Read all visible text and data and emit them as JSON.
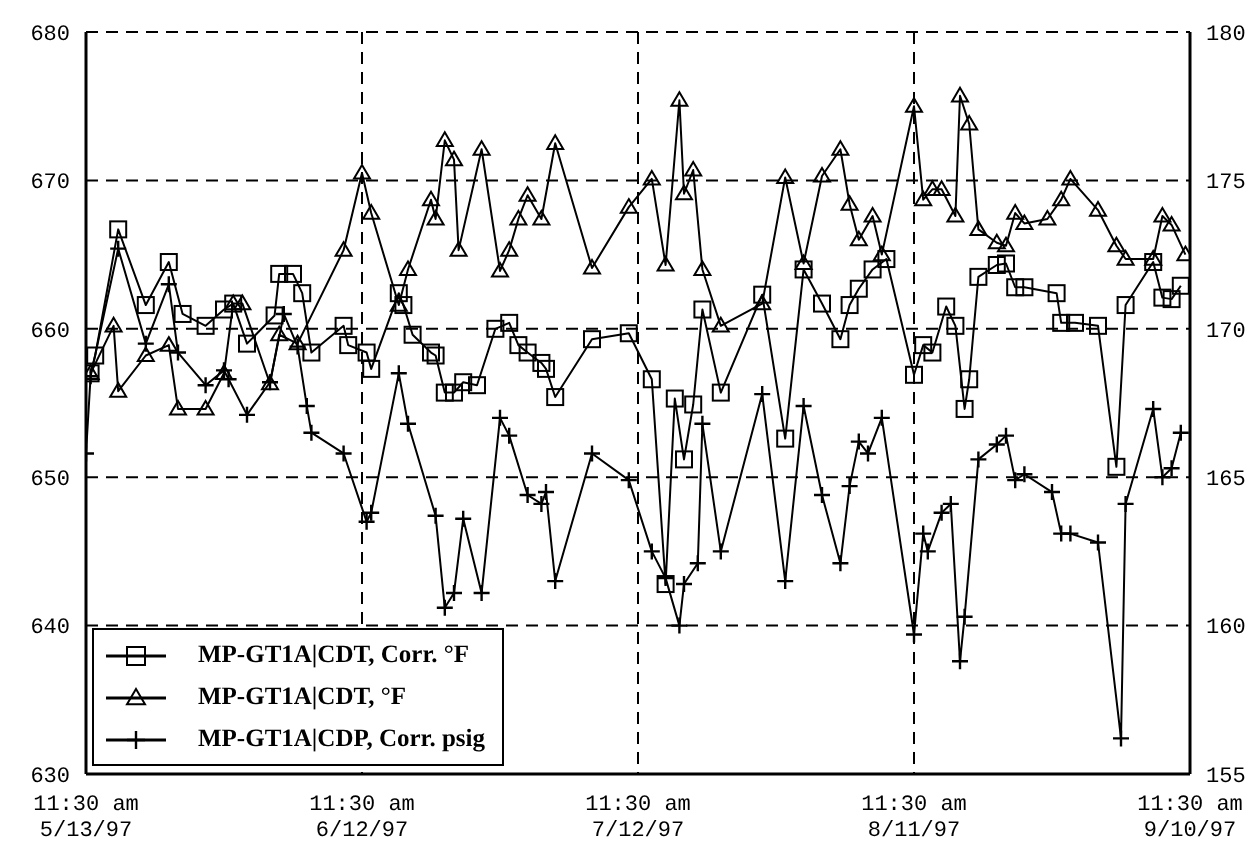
{
  "chart_data": {
    "type": "line",
    "xlim": [
      "1997-05-13T11:30",
      "1997-09-10T11:30"
    ],
    "xticks": [
      {
        "value": "1997-05-13T11:30",
        "label": "11:30 am\n5/13/97"
      },
      {
        "value": "1997-06-12T11:30",
        "label": "11:30 am\n6/12/97"
      },
      {
        "value": "1997-07-12T11:30",
        "label": "11:30 am\n7/12/97"
      },
      {
        "value": "1997-08-11T11:30",
        "label": "11:30 am\n8/11/97"
      },
      {
        "value": "1997-09-10T11:30",
        "label": "11:30 am\n9/10/97"
      }
    ],
    "ylim": [
      630,
      680
    ],
    "yticks": [
      630,
      640,
      650,
      660,
      670,
      680
    ],
    "y2lim": [
      155,
      180
    ],
    "y2ticks": [
      155,
      160,
      165,
      170,
      175,
      180
    ],
    "grid": true,
    "legend": "bottom left",
    "line_style": "solid",
    "series": [
      {
        "name": "MP-GT1A|CDT, Corr. °F",
        "color": "#000000",
        "marker": "square",
        "x": [
          "1997-05-13T23:30",
          "1997-05-14T11:30",
          "1997-05-16T23:30",
          "1997-05-19T23:30",
          "1997-05-22T11:30",
          "1997-05-23T23:30",
          "1997-05-26T11:30",
          "1997-05-28T11:30",
          "1997-05-29T11:30",
          "1997-05-30T23:30",
          "1997-06-02T23:30",
          "1997-06-03T11:30",
          "1997-06-04T23:30",
          "1997-06-05T23:30",
          "1997-06-06T23:30",
          "1997-06-10T11:30",
          "1997-06-10T23:30",
          "1997-06-12T23:30",
          "1997-06-13T11:30",
          "1997-06-16T11:30",
          "1997-06-16T23:30",
          "1997-06-17T23:30",
          "1997-06-19T23:30",
          "1997-06-20T11:30",
          "1997-06-21T11:30",
          "1997-06-22T11:30",
          "1997-06-23T11:30",
          "1997-06-24T23:30",
          "1997-06-26T23:30",
          "1997-06-28T11:30",
          "1997-06-29T11:30",
          "1997-06-30T11:30",
          "1997-07-01T23:30",
          "1997-07-02T11:30",
          "1997-07-03T11:30",
          "1997-07-07T11:30",
          "1997-07-11T11:30",
          "1997-07-13T23:30",
          "1997-07-15T11:30",
          "1997-07-16T11:30",
          "1997-07-17T11:30",
          "1997-07-18T11:30",
          "1997-07-19T11:30",
          "1997-07-21T11:30",
          "1997-07-25T23:30",
          "1997-07-28T11:30",
          "1997-07-30T11:30",
          "1997-08-01T11:30",
          "1997-08-03T11:30",
          "1997-08-04T11:30",
          "1997-08-05T11:30",
          "1997-08-06T23:30",
          "1997-08-08T11:30",
          "1997-08-11T11:30",
          "1997-08-12T11:30",
          "1997-08-13T11:30",
          "1997-08-14T23:30",
          "1997-08-15T23:30",
          "1997-08-16T23:30",
          "1997-08-17T11:30",
          "1997-08-18T11:30",
          "1997-08-20T11:30",
          "1997-08-21T11:30",
          "1997-08-22T11:30",
          "1997-08-23T11:30",
          "1997-08-26T23:30",
          "1997-08-27T11:30",
          "1997-08-28T23:30",
          "1997-08-31T11:30",
          "1997-09-02T11:30",
          "1997-09-03T11:30",
          "1997-09-06T11:30",
          "1997-09-07T11:30",
          "1997-09-08T11:30",
          "1997-09-09T11:30"
        ],
        "values": [
          657,
          658.2,
          666.7,
          661.6,
          664.5,
          661,
          660.2,
          661.3,
          661.7,
          659,
          660.9,
          663.7,
          663.7,
          662.4,
          658.4,
          660.2,
          658.9,
          658.4,
          657.3,
          662.4,
          661.6,
          659.6,
          658.4,
          658.2,
          655.7,
          655.7,
          656.4,
          656.2,
          660,
          660.4,
          658.9,
          658.4,
          657.7,
          657.3,
          655.4,
          659.3,
          659.7,
          656.6,
          642.8,
          655.3,
          651.2,
          654.9,
          661.3,
          655.7,
          662.3,
          652.6,
          664,
          661.7,
          659.3,
          661.6,
          662.7,
          664,
          664.7,
          656.9,
          658.9,
          658.4,
          661.5,
          660.2,
          654.6,
          656.6,
          663.5,
          664.3,
          664.4,
          662.8,
          662.8,
          662.4,
          660.4,
          660.4,
          660.2,
          650.7,
          661.6,
          664.5,
          662.1,
          662,
          662.9
        ]
      },
      {
        "name": "MP-GT1A|CDT, °F",
        "color": "#000000",
        "marker": "triangle",
        "x": [
          "1997-05-13T23:30",
          "1997-05-16T11:30",
          "1997-05-16T23:30",
          "1997-05-19T23:30",
          "1997-05-22T11:30",
          "1997-05-23T11:30",
          "1997-05-26T11:30",
          "1997-05-28T11:30",
          "1997-05-29T11:30",
          "1997-05-30T11:30",
          "1997-06-02T11:30",
          "1997-06-03T11:30",
          "1997-06-05T11:30",
          "1997-06-10T11:30",
          "1997-06-12T11:30",
          "1997-06-13T11:30",
          "1997-06-16T11:30",
          "1997-06-17T11:30",
          "1997-06-19T23:30",
          "1997-06-20T11:30",
          "1997-06-21T11:30",
          "1997-06-22T11:30",
          "1997-06-22T23:30",
          "1997-06-25T11:30",
          "1997-06-27T11:30",
          "1997-06-28T11:30",
          "1997-06-29T11:30",
          "1997-06-30T11:30",
          "1997-07-01T23:30",
          "1997-07-03T11:30",
          "1997-07-07T11:30",
          "1997-07-11T11:30",
          "1997-07-13T23:30",
          "1997-07-15T11:30",
          "1997-07-16T23:30",
          "1997-07-17T11:30",
          "1997-07-18T11:30",
          "1997-07-19T11:30",
          "1997-07-21T11:30",
          "1997-07-25T23:30",
          "1997-07-28T11:30",
          "1997-07-30T11:30",
          "1997-08-01T11:30",
          "1997-08-03T11:30",
          "1997-08-04T11:30",
          "1997-08-05T11:30",
          "1997-08-06T23:30",
          "1997-08-07T23:30",
          "1997-08-11T11:30",
          "1997-08-12T11:30",
          "1997-08-13T11:30",
          "1997-08-14T11:30",
          "1997-08-15T23:30",
          "1997-08-16T11:30",
          "1997-08-17T11:30",
          "1997-08-18T11:30",
          "1997-08-20T11:30",
          "1997-08-21T11:30",
          "1997-08-22T11:30",
          "1997-08-23T11:30",
          "1997-08-25T23:30",
          "1997-08-27T11:30",
          "1997-08-28T11:30",
          "1997-08-31T11:30",
          "1997-09-02T11:30",
          "1997-09-03T11:30",
          "1997-09-06T11:30",
          "1997-09-07T11:30",
          "1997-09-08T11:30",
          "1997-09-09T23:30"
        ],
        "values": [
          657,
          660.2,
          655.8,
          658.2,
          658.9,
          654.6,
          654.6,
          657,
          661.7,
          661.7,
          656.3,
          659.6,
          659,
          665.3,
          670.5,
          667.8,
          661.6,
          664,
          668.7,
          667.4,
          672.7,
          671.4,
          665.3,
          672.1,
          663.9,
          665.3,
          667.4,
          669,
          667.4,
          672.5,
          664.1,
          668.2,
          670.1,
          664.3,
          675.4,
          669.1,
          670.7,
          664,
          660.2,
          661.7,
          670.2,
          664.4,
          670.3,
          672.1,
          668.4,
          666,
          667.6,
          665,
          675,
          668.7,
          669.4,
          669.4,
          667.6,
          675.7,
          673.8,
          666.7,
          665.8,
          665.6,
          667.8,
          667.1,
          667.4,
          668.7,
          670.1,
          668,
          665.6,
          664.7,
          664.7,
          667.6,
          667,
          665
        ]
      },
      {
        "name": "MP-GT1A|CDP, Corr. psig",
        "color": "#000000",
        "marker": "cross",
        "axis": "y2",
        "x": [
          "1997-05-13T11:30",
          "1997-05-13T23:30",
          "1997-05-16T23:30",
          "1997-05-19T23:30",
          "1997-05-22T11:30",
          "1997-05-23T11:30",
          "1997-05-26T11:30",
          "1997-05-28T11:30",
          "1997-05-28T23:30",
          "1997-05-30T23:30",
          "1997-06-02T11:30",
          "1997-06-03T23:30",
          "1997-06-05T11:30",
          "1997-06-06T11:30",
          "1997-06-06T23:30",
          "1997-06-10T11:30",
          "1997-06-12T23:30",
          "1997-06-13T11:30",
          "1997-06-16T11:30",
          "1997-06-17T11:30",
          "1997-06-20T11:30",
          "1997-06-21T11:30",
          "1997-06-22T11:30",
          "1997-06-23T11:30",
          "1997-06-25T11:30",
          "1997-06-27T11:30",
          "1997-06-28T11:30",
          "1997-06-30T11:30",
          "1997-07-01T23:30",
          "1997-07-02T11:30",
          "1997-07-03T11:30",
          "1997-07-07T11:30",
          "1997-07-11T11:30",
          "1997-07-13T23:30",
          "1997-07-15T11:30",
          "1997-07-16T23:30",
          "1997-07-17T11:30",
          "1997-07-18T23:30",
          "1997-07-19T11:30",
          "1997-07-21T11:30",
          "1997-07-25T23:30",
          "1997-07-28T11:30",
          "1997-07-30T11:30",
          "1997-08-01T11:30",
          "1997-08-03T11:30",
          "1997-08-04T11:30",
          "1997-08-05T11:30",
          "1997-08-06T11:30",
          "1997-08-07T23:30",
          "1997-08-11T11:30",
          "1997-08-12T11:30",
          "1997-08-12T23:30",
          "1997-08-14T11:30",
          "1997-08-15T11:30",
          "1997-08-16T11:30",
          "1997-08-16T23:30",
          "1997-08-18T11:30",
          "1997-08-20T11:30",
          "1997-08-21T11:30",
          "1997-08-22T11:30",
          "1997-08-23T11:30",
          "1997-08-26T11:30",
          "1997-08-27T11:30",
          "1997-08-28T11:30",
          "1997-08-31T11:30",
          "1997-09-02T23:30",
          "1997-09-03T11:30",
          "1997-09-06T11:30",
          "1997-09-07T11:30",
          "1997-09-08T11:30",
          "1997-09-09T11:30"
        ],
        "values": [
          165.8,
          168.4,
          172.7,
          169.5,
          171.5,
          169.2,
          168.1,
          168.6,
          168.3,
          167.1,
          168.2,
          170.5,
          169.4,
          167.4,
          166.5,
          165.8,
          163.5,
          163.8,
          168.5,
          166.8,
          163.7,
          160.6,
          161.1,
          163.6,
          161.1,
          167,
          166.4,
          164.4,
          164.1,
          164.5,
          161.5,
          165.8,
          164.9,
          162.5,
          161.6,
          160,
          161.4,
          162.1,
          166.8,
          162.5,
          167.8,
          161.5,
          167.4,
          164.4,
          162.1,
          164.7,
          166.2,
          165.8,
          167,
          159.7,
          163.1,
          162.5,
          163.8,
          164.1,
          158.8,
          160.3,
          165.6,
          166.1,
          166.4,
          164.9,
          165.1,
          164.5,
          163.1,
          163.1,
          162.8,
          156.2,
          164.1,
          167.3,
          165,
          165.3,
          166.5
        ]
      }
    ]
  }
}
